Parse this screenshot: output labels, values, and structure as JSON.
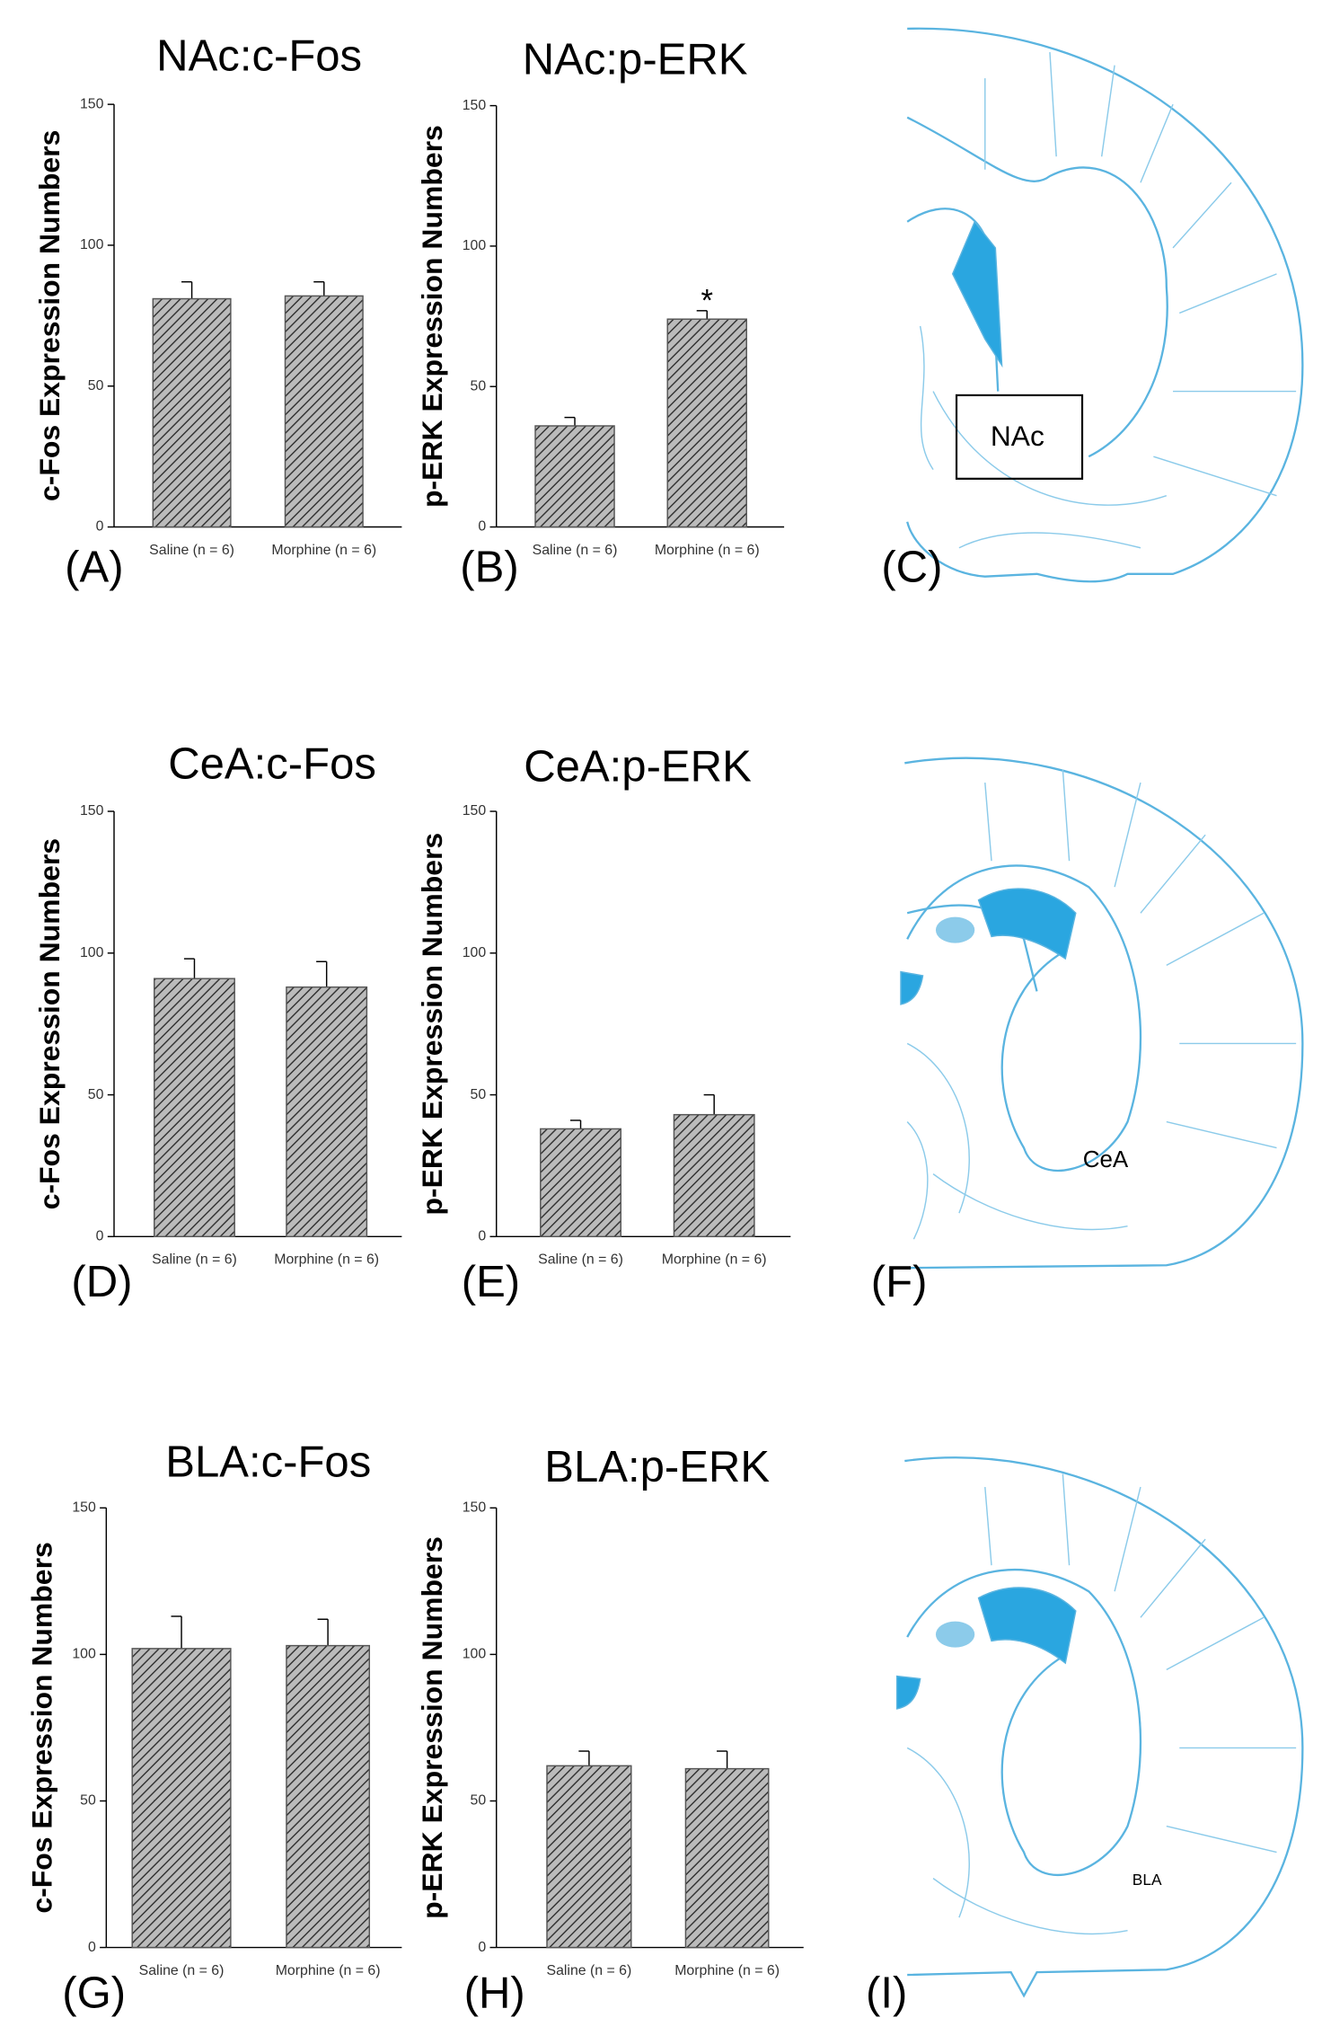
{
  "chart_data": [
    {
      "type": "bar",
      "title": "NAc:c-Fos",
      "panel_label": "(A)",
      "ylabel": "c-Fos Expression Numbers",
      "categories": [
        "Saline (n = 6)",
        "Morphine (n = 6)"
      ],
      "values": [
        81,
        82
      ],
      "errors": [
        6,
        5
      ],
      "color": "#555555",
      "ylim": [
        0,
        150
      ],
      "yticks": [
        0,
        50,
        100,
        150
      ]
    },
    {
      "type": "bar",
      "title": "NAc:p-ERK",
      "panel_label": "(B)",
      "ylabel": "p-ERK Expression Numbers",
      "categories": [
        "Saline (n = 6)",
        "Morphine (n = 6)"
      ],
      "values": [
        36,
        74
      ],
      "errors": [
        3,
        3
      ],
      "color": "#555555",
      "ylim": [
        0,
        150
      ],
      "yticks": [
        0,
        50,
        100,
        150
      ],
      "annotations": [
        {
          "text": "*",
          "x": "Morphine (n = 6)"
        }
      ]
    },
    {
      "type": "bar",
      "title": "CeA:c-Fos",
      "panel_label": "(D)",
      "ylabel": "c-Fos Expression Numbers",
      "categories": [
        "Saline (n = 6)",
        "Morphine (n = 6)"
      ],
      "values": [
        91,
        88
      ],
      "errors": [
        7,
        9
      ],
      "color": "#555555",
      "ylim": [
        0,
        150
      ],
      "yticks": [
        0,
        50,
        100,
        150
      ]
    },
    {
      "type": "bar",
      "title": "CeA:p-ERK",
      "panel_label": "(E)",
      "ylabel": "p-ERK Expression Numbers",
      "categories": [
        "Saline (n = 6)",
        "Morphine (n = 6)"
      ],
      "values": [
        38,
        43
      ],
      "errors": [
        3,
        7
      ],
      "color": "#555555",
      "ylim": [
        0,
        150
      ],
      "yticks": [
        0,
        50,
        100,
        150
      ]
    },
    {
      "type": "bar",
      "title": "BLA:c-Fos",
      "panel_label": "(G)",
      "ylabel": "c-Fos Expression Numbers",
      "categories": [
        "Saline (n = 6)",
        "Morphine (n = 6)"
      ],
      "values": [
        102,
        103
      ],
      "errors": [
        11,
        9
      ],
      "color": "#555555",
      "ylim": [
        0,
        150
      ],
      "yticks": [
        0,
        50,
        100,
        150
      ]
    },
    {
      "type": "bar",
      "title": "BLA:p-ERK",
      "panel_label": "(H)",
      "ylabel": "p-ERK Expression Numbers",
      "categories": [
        "Saline (n = 6)",
        "Morphine (n = 6)"
      ],
      "values": [
        62,
        61
      ],
      "errors": [
        5,
        6
      ],
      "color": "#555555",
      "ylim": [
        0,
        150
      ],
      "yticks": [
        0,
        50,
        100,
        150
      ]
    }
  ],
  "diagrams": [
    {
      "panel_label": "(C)",
      "region": "NAc"
    },
    {
      "panel_label": "(F)",
      "region": "CeA"
    },
    {
      "panel_label": "(I)",
      "region": "BLA"
    }
  ]
}
